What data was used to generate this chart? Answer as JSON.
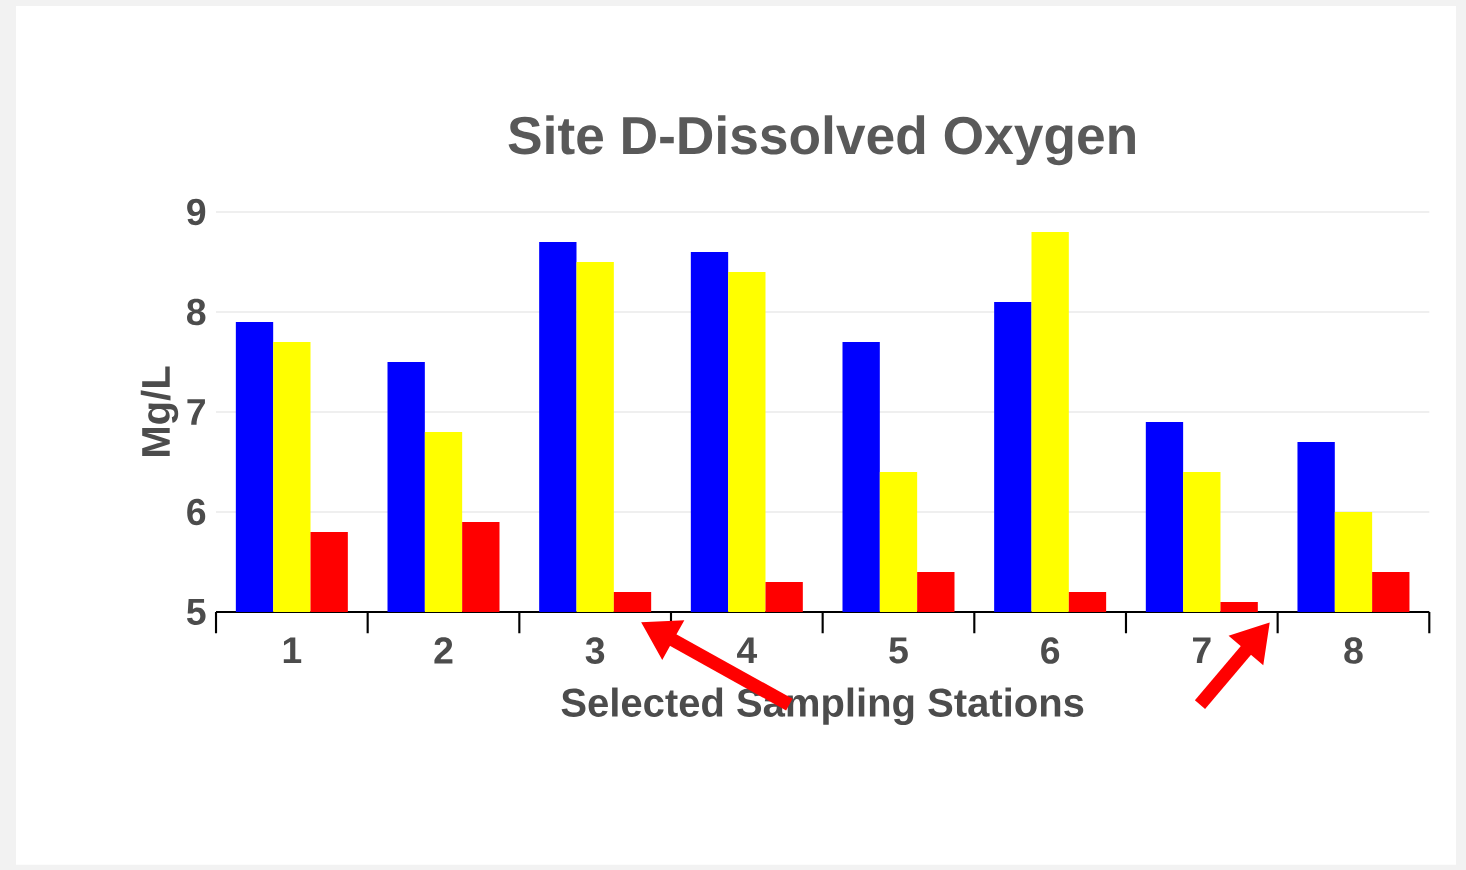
{
  "chart_data": {
    "type": "bar",
    "title": "Site D-Dissolved Oxygen",
    "xlabel": "Selected Sampling Stations",
    "ylabel": "Mg/L",
    "categories": [
      "1",
      "2",
      "3",
      "4",
      "5",
      "6",
      "7",
      "8"
    ],
    "series": [
      {
        "color": "#0000ff",
        "values": [
          7.9,
          7.5,
          8.7,
          8.6,
          7.7,
          8.1,
          6.9,
          6.7
        ]
      },
      {
        "color": "#ffff00",
        "values": [
          7.7,
          6.8,
          8.5,
          8.4,
          6.4,
          8.8,
          6.4,
          6.0
        ]
      },
      {
        "color": "#ff0000",
        "values": [
          5.8,
          5.9,
          5.2,
          5.3,
          5.4,
          5.2,
          5.1,
          5.4
        ]
      }
    ],
    "ylim": [
      5,
      9
    ],
    "yticks": [
      5,
      6,
      7,
      8,
      9
    ],
    "grid": "y"
  }
}
